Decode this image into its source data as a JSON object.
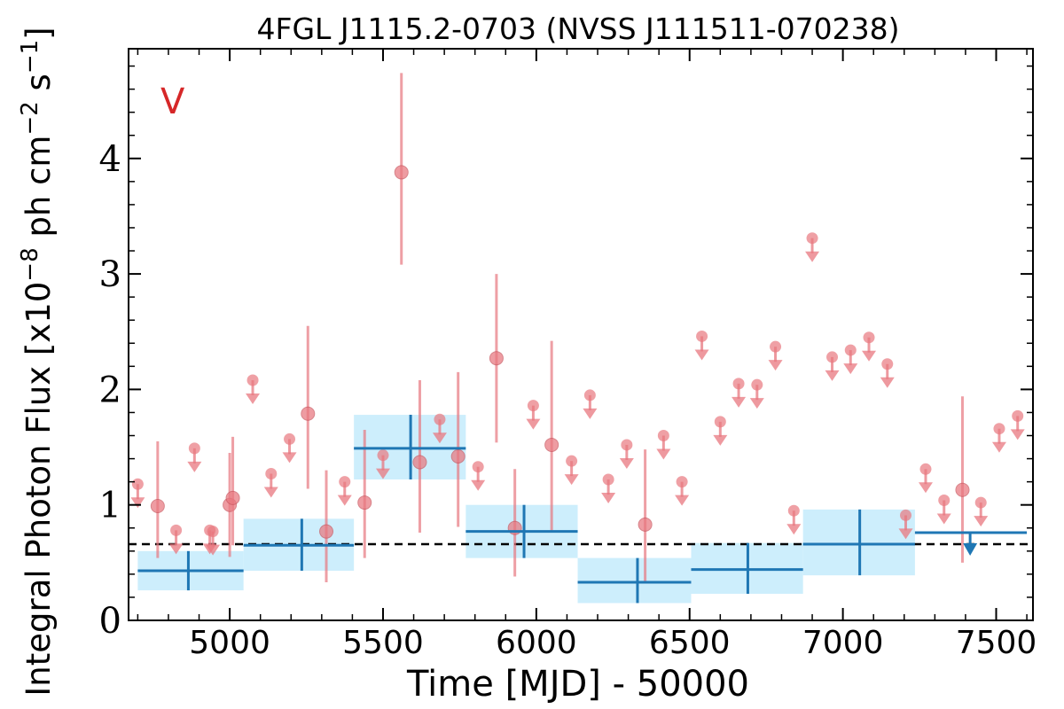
{
  "chart_data": {
    "type": "scatter",
    "title": "4FGL J1115.2-0703 (NVSS J111511-070238)",
    "xlabel": "Time [MJD] - 50000",
    "ylabel": "Integral Photon Flux [x10",
    "ylabel_exp1": "−8",
    "ylabel_mid": " ph cm",
    "ylabel_exp2": "−2",
    "ylabel_mid2": " s",
    "ylabel_exp3": "−1",
    "ylabel_end": "]",
    "band_label": "V",
    "xlim": [
      4670,
      7620
    ],
    "ylim": [
      0,
      4.95
    ],
    "x_ticks": [
      5000,
      5500,
      6000,
      6500,
      7000,
      7500
    ],
    "y_ticks": [
      0,
      1,
      2,
      3,
      4
    ],
    "mean_flux": 0.66,
    "colors": {
      "points": "#e8777f",
      "bins_line": "#1f77b4",
      "bins_fill": "#cdeefc",
      "mean_line": "#000000",
      "band_label": "#d62728"
    },
    "series": [
      {
        "name": "",
        "points": [
          {
            "x": 4935,
            "y": 0.78,
            "ul": true
          },
          {
            "x": 5000,
            "y": 1.0,
            "yerr": 0.45
          },
          {
            "x": 4700,
            "y": 1.18,
            "ul": true
          },
          {
            "x": 4765,
            "y": 0.99,
            "lo": 0.54,
            "hi": 1.55
          },
          {
            "x": 4825,
            "y": 0.78,
            "ul": true
          },
          {
            "x": 4885,
            "y": 1.49,
            "ul": true
          },
          {
            "x": 4945,
            "y": 0.77,
            "ul": true
          },
          {
            "x": 5010,
            "y": 1.06,
            "lo": 0.65,
            "hi": 1.59
          },
          {
            "x": 5075,
            "y": 2.08,
            "ul": true
          },
          {
            "x": 5135,
            "y": 1.27,
            "ul": true
          },
          {
            "x": 5195,
            "y": 1.57,
            "ul": true
          },
          {
            "x": 5255,
            "y": 1.79,
            "lo": 1.14,
            "hi": 2.55
          },
          {
            "x": 5315,
            "y": 0.77,
            "lo": 0.33,
            "hi": 1.3
          },
          {
            "x": 5375,
            "y": 1.2,
            "ul": true
          },
          {
            "x": 5440,
            "y": 1.02,
            "lo": 0.54,
            "hi": 1.65
          },
          {
            "x": 5500,
            "y": 1.43,
            "ul": true
          },
          {
            "x": 5560,
            "y": 3.88,
            "lo": 3.08,
            "hi": 4.74
          },
          {
            "x": 5620,
            "y": 1.37,
            "lo": 0.76,
            "hi": 2.08
          },
          {
            "x": 5685,
            "y": 1.74,
            "ul": true
          },
          {
            "x": 5745,
            "y": 1.42,
            "lo": 0.81,
            "hi": 2.15
          },
          {
            "x": 5810,
            "y": 1.33,
            "ul": true
          },
          {
            "x": 5870,
            "y": 2.27,
            "lo": 1.54,
            "hi": 3.0
          },
          {
            "x": 5930,
            "y": 0.8,
            "lo": 0.38,
            "hi": 1.31
          },
          {
            "x": 5990,
            "y": 1.86,
            "ul": true
          },
          {
            "x": 6050,
            "y": 1.52,
            "lo": 0.78,
            "hi": 2.42
          },
          {
            "x": 6115,
            "y": 1.38,
            "ul": true
          },
          {
            "x": 6175,
            "y": 1.95,
            "ul": true
          },
          {
            "x": 6235,
            "y": 1.22,
            "ul": true
          },
          {
            "x": 6295,
            "y": 1.52,
            "ul": true
          },
          {
            "x": 6355,
            "y": 0.83,
            "lo": 0.32,
            "hi": 1.48
          },
          {
            "x": 6415,
            "y": 1.6,
            "ul": true
          },
          {
            "x": 6475,
            "y": 1.2,
            "ul": true
          },
          {
            "x": 6540,
            "y": 2.46,
            "ul": true
          },
          {
            "x": 6600,
            "y": 1.72,
            "ul": true
          },
          {
            "x": 6660,
            "y": 2.05,
            "ul": true
          },
          {
            "x": 6720,
            "y": 2.04,
            "ul": true
          },
          {
            "x": 6780,
            "y": 2.37,
            "ul": true
          },
          {
            "x": 6840,
            "y": 0.95,
            "ul": true
          },
          {
            "x": 6900,
            "y": 3.31,
            "ul": true
          },
          {
            "x": 6965,
            "y": 2.28,
            "ul": true
          },
          {
            "x": 7025,
            "y": 2.34,
            "ul": true
          },
          {
            "x": 7085,
            "y": 2.45,
            "ul": true
          },
          {
            "x": 7145,
            "y": 2.22,
            "ul": true
          },
          {
            "x": 7205,
            "y": 0.91,
            "ul": true
          },
          {
            "x": 7270,
            "y": 1.31,
            "ul": true
          },
          {
            "x": 7330,
            "y": 1.04,
            "ul": true
          },
          {
            "x": 7390,
            "y": 1.13,
            "lo": 0.5,
            "hi": 1.94
          },
          {
            "x": 7450,
            "y": 1.02,
            "ul": true
          },
          {
            "x": 7510,
            "y": 1.66,
            "ul": true
          },
          {
            "x": 7570,
            "y": 1.77,
            "ul": true
          }
        ]
      }
    ],
    "bins": [
      {
        "x0": 4700,
        "x1": 5045,
        "xc": 4865,
        "y": 0.43,
        "lo": 0.26,
        "hi": 0.6
      },
      {
        "x0": 5045,
        "x1": 5405,
        "xc": 5235,
        "y": 0.65,
        "lo": 0.43,
        "hi": 0.88
      },
      {
        "x0": 5405,
        "x1": 5770,
        "xc": 5590,
        "y": 1.49,
        "lo": 1.22,
        "hi": 1.78
      },
      {
        "x0": 5770,
        "x1": 6135,
        "xc": 5960,
        "y": 0.77,
        "lo": 0.54,
        "hi": 1.0
      },
      {
        "x0": 6135,
        "x1": 6505,
        "xc": 6330,
        "y": 0.33,
        "lo": 0.15,
        "hi": 0.54
      },
      {
        "x0": 6505,
        "x1": 6870,
        "xc": 6690,
        "y": 0.44,
        "lo": 0.23,
        "hi": 0.67
      },
      {
        "x0": 6870,
        "x1": 7235,
        "xc": 7055,
        "y": 0.66,
        "lo": 0.39,
        "hi": 0.96
      },
      {
        "x0": 7235,
        "x1": 7600,
        "xc": 7415,
        "y": 0.76,
        "ul": true
      }
    ]
  }
}
